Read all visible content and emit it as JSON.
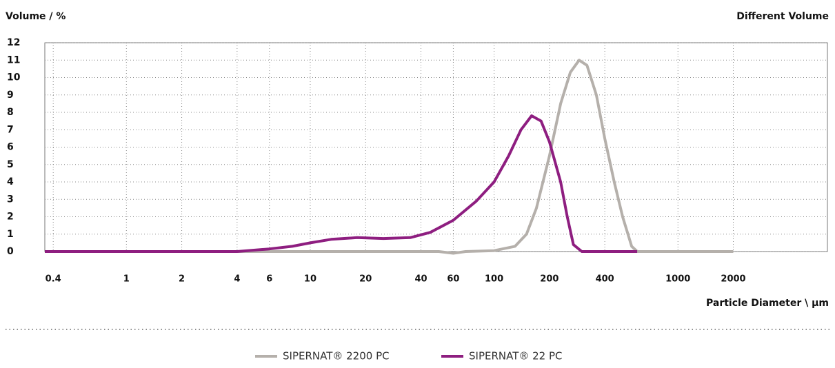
{
  "chart_data": {
    "type": "line",
    "y_label": "Volume / %",
    "title": "Different Volume",
    "x_label": "Particle Diameter \\ µm",
    "log_x": true,
    "grid": true,
    "xlim": [
      0.36,
      6500
    ],
    "ylim": [
      0,
      12
    ],
    "xticks": [
      0.4,
      1,
      2,
      4,
      6,
      10,
      20,
      40,
      60,
      100,
      200,
      400,
      1000,
      2000
    ],
    "yticks": [
      0,
      1,
      2,
      3,
      4,
      5,
      6,
      7,
      8,
      9,
      10,
      11,
      12
    ],
    "series": [
      {
        "name": "SIPERNAT® 2200 PC",
        "color": "#b5b0ab",
        "x": [
          0.36,
          50,
          60,
          70,
          100,
          130,
          150,
          170,
          200,
          230,
          260,
          290,
          320,
          360,
          400,
          450,
          500,
          560,
          600,
          2000
        ],
        "values": [
          0,
          0,
          -0.1,
          0,
          0.05,
          0.3,
          1,
          2.5,
          5.5,
          8.5,
          10.3,
          11,
          10.7,
          9,
          6.5,
          4,
          2,
          0.3,
          0,
          0
        ]
      },
      {
        "name": "SIPERNAT® 22 PC",
        "color": "#8e1e80",
        "x": [
          0.36,
          4,
          6,
          8,
          10,
          13,
          18,
          25,
          35,
          45,
          60,
          80,
          100,
          120,
          140,
          160,
          180,
          200,
          230,
          250,
          270,
          300,
          600
        ],
        "values": [
          0,
          0,
          0.15,
          0.3,
          0.5,
          0.7,
          0.8,
          0.75,
          0.8,
          1.1,
          1.8,
          2.9,
          4,
          5.5,
          7,
          7.8,
          7.5,
          6.3,
          4,
          2,
          0.4,
          0,
          0
        ]
      }
    ]
  }
}
